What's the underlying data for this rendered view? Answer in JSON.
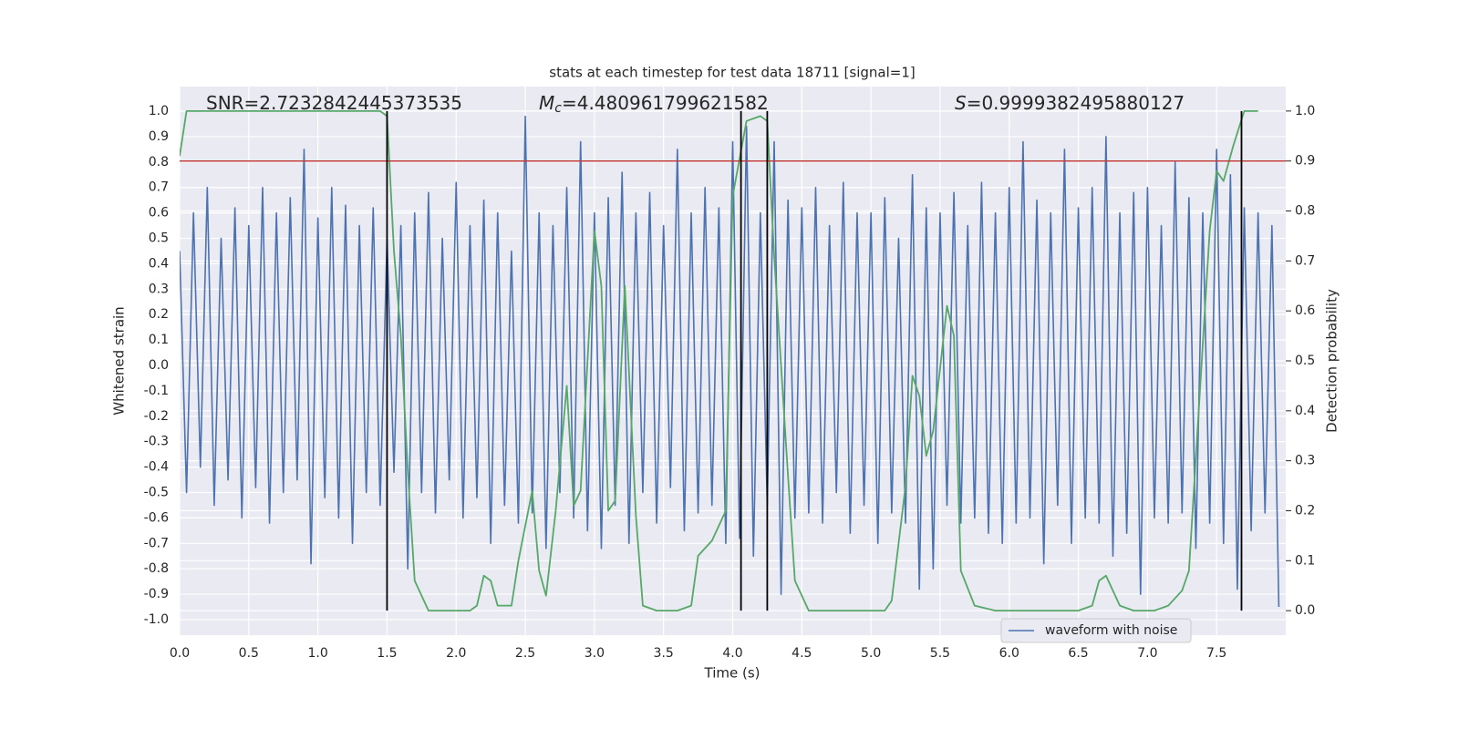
{
  "chart_data": {
    "type": "line",
    "title": "stats at each timestep for test data 18711 [signal=1]",
    "xlabel": "Time (s)",
    "ylabel": "Whitened strain",
    "y2label": "Detection probability",
    "xlim": [
      0,
      8
    ],
    "ylim": [
      -1.061,
      1.097
    ],
    "y2lim": [
      -0.049,
      1.049
    ],
    "xticks": [
      {
        "value": 0,
        "label": "0.0"
      },
      0.5,
      {
        "value": 1,
        "label": "1.0"
      },
      1.5,
      {
        "value": 2,
        "label": "2.0"
      },
      2.5,
      {
        "value": 3,
        "label": "3.0"
      },
      3.5,
      {
        "value": 4,
        "label": "4.0"
      },
      4.5,
      {
        "value": 5,
        "label": "5.0"
      },
      5.5,
      {
        "value": 6,
        "label": "6.0"
      },
      6.5,
      {
        "value": 7,
        "label": "7.0"
      },
      7.5
    ],
    "yticks": [
      {
        "value": -1,
        "label": "-1.0"
      },
      -0.9,
      -0.8,
      -0.7,
      -0.6,
      -0.5,
      -0.4,
      -0.3,
      -0.2,
      -0.1,
      {
        "value": 0,
        "label": "0.0"
      },
      0.1,
      0.2,
      0.3,
      0.4,
      0.5,
      0.6,
      0.7,
      0.8,
      0.9,
      {
        "value": 1,
        "label": "1.0"
      }
    ],
    "y2ticks": [
      {
        "value": 0,
        "label": "0.0"
      },
      0.1,
      0.2,
      0.3,
      0.4,
      0.5,
      0.6,
      0.7,
      0.8,
      0.9,
      {
        "value": 1,
        "label": "1.0"
      }
    ],
    "grid": true,
    "legend": "lower right",
    "series": [
      {
        "name": "waveform with noise",
        "color": "#4c72b0",
        "x": [
          0,
          0.05,
          0.1,
          0.15,
          0.2,
          0.25,
          0.3,
          0.35,
          0.4,
          0.45,
          0.5,
          0.55,
          0.6,
          0.65,
          0.7,
          0.75,
          0.8,
          0.85,
          0.9,
          0.95,
          1,
          1.05,
          1.1,
          1.15,
          1.2,
          1.25,
          1.3,
          1.35,
          1.4,
          1.45,
          1.5,
          1.55,
          1.6,
          1.65,
          1.7,
          1.75,
          1.8,
          1.85,
          1.9,
          1.95,
          2,
          2.05,
          2.1,
          2.15,
          2.2,
          2.25,
          2.3,
          2.35,
          2.4,
          2.45,
          2.5,
          2.55,
          2.6,
          2.65,
          2.7,
          2.75,
          2.8,
          2.85,
          2.9,
          2.95,
          3,
          3.05,
          3.1,
          3.15,
          3.2,
          3.25,
          3.3,
          3.35,
          3.4,
          3.45,
          3.5,
          3.55,
          3.6,
          3.65,
          3.7,
          3.75,
          3.8,
          3.85,
          3.9,
          3.95,
          4,
          4.05,
          4.1,
          4.15,
          4.2,
          4.25,
          4.3,
          4.35,
          4.4,
          4.45,
          4.5,
          4.55,
          4.6,
          4.65,
          4.7,
          4.75,
          4.8,
          4.85,
          4.9,
          4.95,
          5,
          5.05,
          5.1,
          5.15,
          5.2,
          5.25,
          5.3,
          5.35,
          5.4,
          5.45,
          5.5,
          5.55,
          5.6,
          5.65,
          5.7,
          5.75,
          5.8,
          5.85,
          5.9,
          5.95,
          6,
          6.05,
          6.1,
          6.15,
          6.2,
          6.25,
          6.3,
          6.35,
          6.4,
          6.45,
          6.5,
          6.55,
          6.6,
          6.65,
          6.7,
          6.75,
          6.8,
          6.85,
          6.9,
          6.95,
          7,
          7.05,
          7.1,
          7.15,
          7.2,
          7.25,
          7.3,
          7.35,
          7.4,
          7.45,
          7.5,
          7.55,
          7.6,
          7.65,
          7.7,
          7.75,
          7.8,
          7.85,
          7.9,
          7.95
        ],
        "values": [
          0.45,
          -0.5,
          0.6,
          -0.4,
          0.7,
          -0.55,
          0.5,
          -0.45,
          0.62,
          -0.6,
          0.55,
          -0.48,
          0.7,
          -0.62,
          0.6,
          -0.5,
          0.66,
          -0.45,
          0.85,
          -0.78,
          0.58,
          -0.52,
          0.7,
          -0.6,
          0.63,
          -0.7,
          0.55,
          -0.5,
          0.62,
          -0.55,
          0.5,
          -0.42,
          0.55,
          -0.8,
          0.6,
          -0.5,
          0.68,
          -0.58,
          0.5,
          -0.45,
          0.72,
          -0.6,
          0.55,
          -0.52,
          0.65,
          -0.7,
          0.6,
          -0.55,
          0.45,
          -0.62,
          0.98,
          -0.58,
          0.6,
          -0.72,
          0.55,
          -0.5,
          0.7,
          -0.6,
          0.88,
          -0.65,
          0.6,
          -0.72,
          0.66,
          -0.55,
          0.76,
          -0.7,
          0.6,
          -0.5,
          0.68,
          -0.62,
          0.55,
          -0.48,
          0.85,
          -0.65,
          0.6,
          -0.58,
          0.7,
          -0.55,
          0.62,
          -0.7,
          0.88,
          -0.68,
          0.94,
          -0.75,
          0.6,
          -0.55,
          0.88,
          -0.9,
          0.65,
          -0.6,
          0.62,
          -0.58,
          0.7,
          -0.62,
          0.55,
          -0.5,
          0.72,
          -0.66,
          0.6,
          -0.55,
          0.6,
          -0.7,
          0.66,
          -0.58,
          0.5,
          -0.62,
          0.75,
          -0.88,
          0.62,
          -0.8,
          0.6,
          -0.55,
          0.68,
          -0.62,
          0.55,
          -0.6,
          0.72,
          -0.66,
          0.6,
          -0.7,
          0.7,
          -0.62,
          0.88,
          -0.6,
          0.65,
          -0.78,
          0.6,
          -0.55,
          0.85,
          -0.7,
          0.62,
          -0.6,
          0.7,
          -0.62,
          0.9,
          -0.75,
          0.6,
          -0.66,
          0.68,
          -0.9,
          0.7,
          -0.6,
          0.55,
          -0.62,
          0.8,
          -0.58,
          0.66,
          -0.72,
          0.6,
          -0.62,
          0.85,
          -0.7,
          0.75,
          -0.88,
          0.62,
          -0.65,
          0.6,
          -0.58,
          0.55,
          -0.95
        ]
      },
      {
        "color": "#55a868",
        "axis": "y2",
        "x": [
          0,
          0.05,
          0.1,
          0.5,
          1,
          1.45,
          1.5,
          1.55,
          1.6,
          1.65,
          1.7,
          1.8,
          1.9,
          2,
          2.1,
          2.15,
          2.2,
          2.25,
          2.3,
          2.4,
          2.45,
          2.55,
          2.6,
          2.65,
          2.72,
          2.8,
          2.85,
          2.9,
          3,
          3.05,
          3.1,
          3.15,
          3.22,
          3.3,
          3.35,
          3.45,
          3.6,
          3.7,
          3.75,
          3.85,
          3.95,
          4,
          4.1,
          4.2,
          4.25,
          4.3,
          4.4,
          4.45,
          4.55,
          4.7,
          5,
          5.1,
          5.15,
          5.25,
          5.3,
          5.35,
          5.4,
          5.45,
          5.55,
          5.6,
          5.65,
          5.75,
          5.9,
          6.2,
          6.5,
          6.6,
          6.65,
          6.7,
          6.8,
          6.9,
          7.05,
          7.15,
          7.25,
          7.3,
          7.45,
          7.5,
          7.55,
          7.62,
          7.7,
          7.8
        ],
        "values": [
          0.91,
          1,
          1,
          1,
          1,
          1,
          0.99,
          0.72,
          0.55,
          0.28,
          0.06,
          0,
          0,
          0,
          0,
          0.01,
          0.07,
          0.06,
          0.01,
          0.01,
          0.1,
          0.24,
          0.08,
          0.03,
          0.2,
          0.45,
          0.21,
          0.24,
          0.76,
          0.65,
          0.2,
          0.22,
          0.65,
          0.19,
          0.01,
          0,
          0,
          0.01,
          0.11,
          0.14,
          0.2,
          0.83,
          0.98,
          0.99,
          0.98,
          0.71,
          0.27,
          0.06,
          0,
          0,
          0,
          0,
          0.02,
          0.25,
          0.47,
          0.43,
          0.31,
          0.36,
          0.61,
          0.55,
          0.08,
          0.01,
          0,
          0,
          0,
          0.01,
          0.06,
          0.07,
          0.01,
          0,
          0,
          0.01,
          0.04,
          0.08,
          0.76,
          0.88,
          0.86,
          0.93,
          1,
          1
        ]
      }
    ],
    "vlines": {
      "color": "#000000",
      "axis": "y2",
      "x": [
        1.5,
        4.06,
        4.25,
        7.68
      ],
      "ymin": 0,
      "ymax": 1
    },
    "threshold": {
      "color": "#c03d3e",
      "axis": "y2",
      "value": 0.9
    },
    "annotations": [
      {
        "text": "SNR=2.7232842445373535"
      },
      {
        "symbol": "M",
        "subscript": "c",
        "text": "=4.480961799621582"
      },
      {
        "symbol": "S",
        "text": "=0.9999382495880127"
      }
    ]
  }
}
